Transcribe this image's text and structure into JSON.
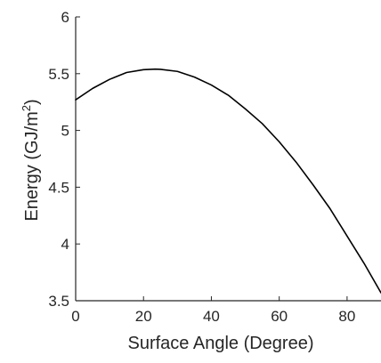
{
  "chart_data": {
    "type": "line",
    "xlabel": "Surface Angle (Degree)",
    "ylabel": {
      "prefix": "Energy (GJ/m",
      "superscript": "2",
      "suffix": ")"
    },
    "xlim": [
      0,
      90
    ],
    "ylim": [
      3.5,
      6
    ],
    "xticks": [
      0,
      20,
      40,
      60,
      80
    ],
    "xtick_labels": [
      "0",
      "20",
      "40",
      "60",
      "80"
    ],
    "yticks": [
      3.5,
      4,
      4.5,
      5,
      5.5,
      6
    ],
    "ytick_labels": [
      "3.5",
      "4",
      "4.5",
      "5",
      "5.5",
      "6"
    ],
    "grid": false,
    "colors": {
      "line": "#000000",
      "axes": "#262626",
      "text": "#262626"
    },
    "series": [
      {
        "x": [
          0,
          5,
          10,
          15,
          20,
          23.5,
          25,
          30,
          35,
          40,
          45,
          50,
          55,
          60,
          65,
          70,
          75,
          80,
          85,
          90
        ],
        "y": [
          5.27,
          5.37,
          5.45,
          5.51,
          5.535,
          5.54,
          5.538,
          5.52,
          5.47,
          5.4,
          5.31,
          5.19,
          5.06,
          4.9,
          4.72,
          4.52,
          4.31,
          4.07,
          3.83,
          3.57
        ]
      }
    ]
  }
}
